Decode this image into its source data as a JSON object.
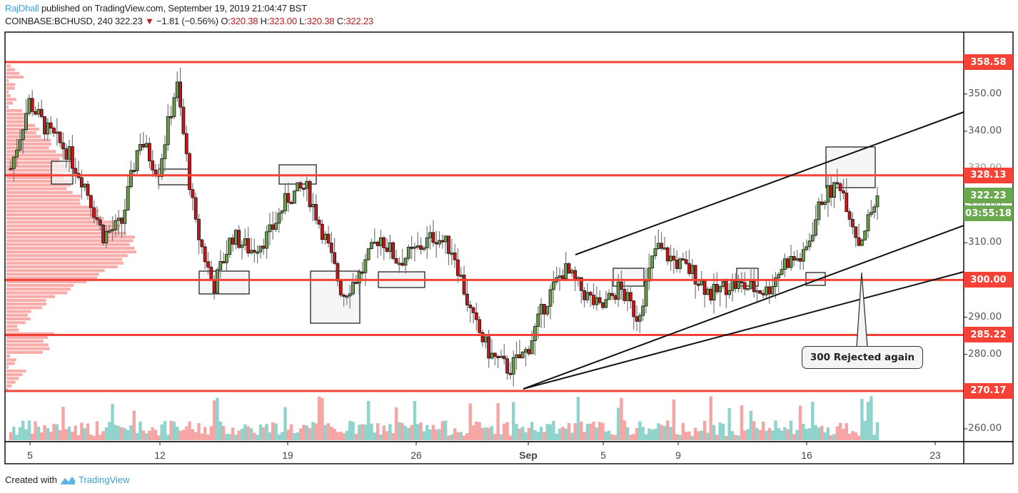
{
  "header": {
    "author": "RajDhall",
    "published_text": " published on TradingView.com, September 19, 2019 21:04:47 BST",
    "symbol": "COINBASE:BCHUSD, 240",
    "last": "322.23",
    "change_arrow": "▼",
    "change": "−1.81 (−0.56%)",
    "o_label": "O:",
    "o": "320.38",
    "h_label": "H:",
    "h": "323.00",
    "l_label": "L:",
    "l": "320.38",
    "c_label": "C:",
    "c": "322.23"
  },
  "footer": {
    "created_with": "Created with",
    "brand": "TradingView"
  },
  "annotation": {
    "text": "300 Rejected again"
  },
  "colors": {
    "up": "#6a9e4b",
    "down": "#c8171a",
    "level": "#f44336",
    "current": "#6aa84f",
    "vol_up": "#8fd3cc",
    "vol_down": "#f5a5a3",
    "profile": "#f8a9a6"
  },
  "chart_data": {
    "type": "candlestick",
    "title": "COINBASE:BCHUSD, 240",
    "xlabel": "",
    "ylabel": "Price (USD)",
    "ylim": [
      256,
      364
    ],
    "x_ticks": [
      "5",
      "12",
      "19",
      "26",
      "Sep",
      "5",
      "9",
      "16",
      "23"
    ],
    "y_ticks": [
      "260.00",
      "270.00",
      "280.00",
      "290.00",
      "300.00",
      "310.00",
      "320.00",
      "330.00",
      "340.00",
      "350.00"
    ],
    "horizontal_levels": [
      358.58,
      328.13,
      300.0,
      285.22,
      270.17
    ],
    "level_labels": [
      "358.58",
      "328.13",
      "300.00",
      "285.22",
      "270.17"
    ],
    "current_price": "322.23",
    "countdown": "03:55:18",
    "annotations": [
      {
        "text": "300 Rejected again",
        "anchor_price": 300.0,
        "date": "Sep 19"
      }
    ],
    "trendlines": [
      {
        "from": [
          "Sep 3",
          307
        ],
        "to": [
          "Sep 23+",
          345
        ]
      },
      {
        "from": [
          "Aug 31",
          270.2
        ],
        "to": [
          "Sep 23+",
          314
        ]
      },
      {
        "from": [
          "Aug 31",
          270.2
        ],
        "to": [
          "Sep 23+",
          302
        ]
      }
    ],
    "grid": false,
    "legend": "none",
    "volume_profile": true,
    "volume_bars": true,
    "candles_approx_close_path": [
      {
        "date": "Aug 3",
        "price": 330
      },
      {
        "date": "Aug 5",
        "price": 348
      },
      {
        "date": "Aug 6",
        "price": 340
      },
      {
        "date": "Aug 8",
        "price": 335
      },
      {
        "date": "Aug 9",
        "price": 326
      },
      {
        "date": "Aug 10",
        "price": 312
      },
      {
        "date": "Aug 11",
        "price": 315
      },
      {
        "date": "Aug 12",
        "price": 338
      },
      {
        "date": "Aug 13",
        "price": 329
      },
      {
        "date": "Aug 14",
        "price": 353
      },
      {
        "date": "Aug 15",
        "price": 315
      },
      {
        "date": "Aug 15b",
        "price": 298
      },
      {
        "date": "Aug 16",
        "price": 312
      },
      {
        "date": "Aug 17",
        "price": 308
      },
      {
        "date": "Aug 18",
        "price": 312
      },
      {
        "date": "Aug 19",
        "price": 322
      },
      {
        "date": "Aug 20",
        "price": 325
      },
      {
        "date": "Aug 21",
        "price": 312
      },
      {
        "date": "Aug 22",
        "price": 296
      },
      {
        "date": "Aug 23",
        "price": 302
      },
      {
        "date": "Aug 24",
        "price": 312
      },
      {
        "date": "Aug 25",
        "price": 305
      },
      {
        "date": "Aug 26",
        "price": 308
      },
      {
        "date": "Aug 27",
        "price": 312
      },
      {
        "date": "Aug 28",
        "price": 308
      },
      {
        "date": "Aug 29",
        "price": 290
      },
      {
        "date": "Aug 30",
        "price": 280
      },
      {
        "date": "Aug 31",
        "price": 276
      },
      {
        "date": "Sep 1",
        "price": 281
      },
      {
        "date": "Sep 2",
        "price": 294
      },
      {
        "date": "Sep 3",
        "price": 303
      },
      {
        "date": "Sep 4",
        "price": 297
      },
      {
        "date": "Sep 5",
        "price": 292
      },
      {
        "date": "Sep 6",
        "price": 298
      },
      {
        "date": "Sep 7",
        "price": 290
      },
      {
        "date": "Sep 8",
        "price": 309
      },
      {
        "date": "Sep 9",
        "price": 305
      },
      {
        "date": "Sep 10",
        "price": 302
      },
      {
        "date": "Sep 11",
        "price": 296
      },
      {
        "date": "Sep 12",
        "price": 299
      },
      {
        "date": "Sep 13",
        "price": 298
      },
      {
        "date": "Sep 14",
        "price": 297
      },
      {
        "date": "Sep 15",
        "price": 305
      },
      {
        "date": "Sep 16",
        "price": 306
      },
      {
        "date": "Sep 17",
        "price": 322
      },
      {
        "date": "Sep 18",
        "price": 326
      },
      {
        "date": "Sep 19",
        "price": 310
      },
      {
        "date": "Sep 19b",
        "price": 322.23
      }
    ]
  }
}
